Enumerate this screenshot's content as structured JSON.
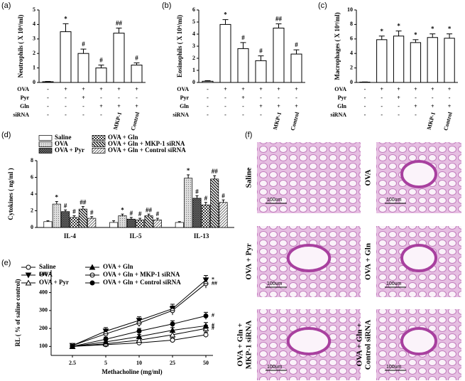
{
  "panel_labels": [
    "(a)",
    "(b)",
    "(c)",
    "(d)",
    "(e)",
    "(f)"
  ],
  "chart_data": [
    {
      "type": "bar",
      "ylabel": "Neutrophils ( X 10⁴/ml)",
      "color": "#ffffff",
      "values": [
        0.05,
        3.5,
        2.0,
        1.0,
        3.4,
        1.2
      ],
      "errors": [
        0.02,
        0.55,
        0.3,
        0.2,
        0.35,
        0.15
      ],
      "annotations": [
        null,
        "*",
        "#",
        "#",
        "##",
        "#"
      ],
      "ylim": [
        0,
        5
      ],
      "yticks": [
        0,
        1,
        2,
        3,
        4,
        5
      ],
      "treatments": [
        {
          "name": "OVA",
          "values": [
            "-",
            "+",
            "+",
            "+",
            "+",
            "+"
          ]
        },
        {
          "name": "Pyr",
          "values": [
            "-",
            "-",
            "+",
            "-",
            "-",
            "-"
          ]
        },
        {
          "name": "Gln",
          "values": [
            "-",
            "-",
            "-",
            "+",
            "+",
            "+"
          ]
        },
        {
          "name": "siRNA",
          "values": [
            "-",
            "-",
            "-",
            "-",
            "MKP-1",
            "Control"
          ]
        }
      ]
    },
    {
      "type": "bar",
      "ylabel": "Eosinophils ( X 10⁴/ml)",
      "color": "#ffffff",
      "values": [
        0.1,
        4.8,
        2.8,
        1.8,
        4.5,
        2.35
      ],
      "errors": [
        0.05,
        0.4,
        0.5,
        0.4,
        0.35,
        0.35
      ],
      "annotations": [
        null,
        "*",
        "#",
        "#",
        "##",
        "#"
      ],
      "ylim": [
        0,
        6
      ],
      "yticks": [
        0,
        1,
        2,
        3,
        4,
        5,
        6
      ],
      "treatments": [
        {
          "name": "OVA",
          "values": [
            "-",
            "+",
            "+",
            "+",
            "+",
            "+"
          ]
        },
        {
          "name": "Pyr",
          "values": [
            "-",
            "-",
            "+",
            "-",
            "-",
            "-"
          ]
        },
        {
          "name": "Gln",
          "values": [
            "-",
            "-",
            "-",
            "+",
            "+",
            "+"
          ]
        },
        {
          "name": "siRNA",
          "values": [
            "-",
            "-",
            "-",
            "-",
            "MKP-1",
            "Control"
          ]
        }
      ]
    },
    {
      "type": "bar",
      "ylabel": "Macrophages ( X 10⁴/ml)",
      "color": "#ffffff",
      "values": [
        0.05,
        5.9,
        6.4,
        5.5,
        6.2,
        6.1
      ],
      "errors": [
        0.02,
        0.5,
        0.7,
        0.4,
        0.5,
        0.6
      ],
      "annotations": [
        null,
        "*",
        "*",
        "*",
        "*",
        "*"
      ],
      "ylim": [
        0,
        10
      ],
      "yticks": [
        0,
        2,
        4,
        6,
        8,
        10
      ],
      "treatments": [
        {
          "name": "OVA",
          "values": [
            "-",
            "+",
            "+",
            "+",
            "+",
            "+"
          ]
        },
        {
          "name": "Pyr",
          "values": [
            "-",
            "-",
            "+",
            "-",
            "-",
            "-"
          ]
        },
        {
          "name": "Gln",
          "values": [
            "-",
            "-",
            "-",
            "+",
            "+",
            "+"
          ]
        },
        {
          "name": "siRNA",
          "values": [
            "-",
            "-",
            "-",
            "-",
            "MKP-1",
            "Control"
          ]
        }
      ]
    },
    {
      "type": "bar",
      "ylabel": "Cytokines ( ng/ml )",
      "categories": [
        "IL-4",
        "IL-5",
        "IL-13"
      ],
      "ylim": [
        0,
        8
      ],
      "yticks": [
        0,
        2,
        4,
        6,
        8
      ],
      "series": [
        {
          "name": "Saline",
          "pattern": "none",
          "values": [
            0.7,
            0.6,
            0.6
          ],
          "errors": [
            0.1,
            0.2,
            0.1
          ],
          "annotations": [
            null,
            null,
            null
          ]
        },
        {
          "name": "OVA",
          "pattern": "dots",
          "values": [
            2.8,
            1.4,
            5.9
          ],
          "errors": [
            0.3,
            0.2,
            0.4
          ],
          "annotations": [
            "*",
            "*",
            "*"
          ]
        },
        {
          "name": "OVA + Pyr",
          "pattern": "crosshatch",
          "values": [
            1.9,
            1.0,
            3.5
          ],
          "errors": [
            0.2,
            0.2,
            0.3
          ],
          "annotations": [
            "#",
            "#",
            "#"
          ]
        },
        {
          "name": "OVA + Gln",
          "pattern": "checker",
          "values": [
            1.2,
            0.9,
            2.7
          ],
          "errors": [
            0.2,
            0.2,
            0.3
          ],
          "annotations": [
            "#",
            "#",
            "#"
          ]
        },
        {
          "name": "OVA + Gln + MKP-1 siRNA",
          "pattern": "backslash",
          "values": [
            2.2,
            1.4,
            5.8
          ],
          "errors": [
            0.3,
            0.2,
            0.4
          ],
          "annotations": [
            "##",
            "##",
            "##"
          ]
        },
        {
          "name": "OVA + Gln + Control siRNA",
          "pattern": "slash",
          "values": [
            1.1,
            0.9,
            3.0
          ],
          "errors": [
            0.2,
            0.2,
            0.3
          ],
          "annotations": [
            "#",
            "#",
            "#"
          ]
        }
      ]
    },
    {
      "type": "line",
      "ylabel": "RL ( % of saline control)",
      "xlabel": "Methacholine (mg/ml)",
      "categories": [
        "2.5",
        "5",
        "10",
        "25",
        "50"
      ],
      "ylim": [
        50,
        525
      ],
      "yticks": [
        100,
        200,
        300,
        400,
        500
      ],
      "series": [
        {
          "name": "Saline",
          "marker": "circle-open",
          "color": "#000000",
          "values": [
            100,
            110,
            120,
            135,
            165
          ],
          "errors": [
            8,
            8,
            10,
            12,
            15
          ],
          "end_label": null
        },
        {
          "name": "OVA",
          "marker": "triangle-down",
          "color": "#000000",
          "values": [
            105,
            185,
            245,
            310,
            470
          ],
          "errors": [
            10,
            20,
            20,
            25,
            25
          ],
          "end_label": "*"
        },
        {
          "name": "OVA + Pyr",
          "marker": "triangle-open",
          "color": "#000000",
          "values": [
            100,
            115,
            135,
            165,
            200
          ],
          "errors": [
            8,
            10,
            12,
            15,
            18
          ],
          "end_label": "#"
        },
        {
          "name": "OVA + Gln",
          "marker": "triangle",
          "color": "#000000",
          "values": [
            100,
            125,
            155,
            190,
            215
          ],
          "errors": [
            8,
            10,
            12,
            15,
            18
          ],
          "end_label": "#"
        },
        {
          "name": "OVA + Gln + MKP-1 siRNA",
          "marker": "circle-bar",
          "color": "#000000",
          "values": [
            105,
            170,
            230,
            300,
            450
          ],
          "errors": [
            10,
            18,
            20,
            25,
            25
          ],
          "end_label": "##"
        },
        {
          "name": "OVA + Gln + Control siRNA",
          "marker": "circle",
          "color": "#000000",
          "values": [
            100,
            140,
            185,
            225,
            270
          ],
          "errors": [
            8,
            12,
            15,
            18,
            20
          ],
          "end_label": "#"
        }
      ]
    }
  ],
  "micrographs": {
    "scale_bar": "100um",
    "labels": [
      [
        "Saline"
      ],
      [
        "OVA"
      ],
      [
        "OVA + Pyr"
      ],
      [
        "OVA + Gln"
      ],
      [
        "OVA + Gln +",
        "MKP-1 siRNA"
      ],
      [
        "OVA + Gln +",
        "Control siRNA"
      ]
    ]
  }
}
